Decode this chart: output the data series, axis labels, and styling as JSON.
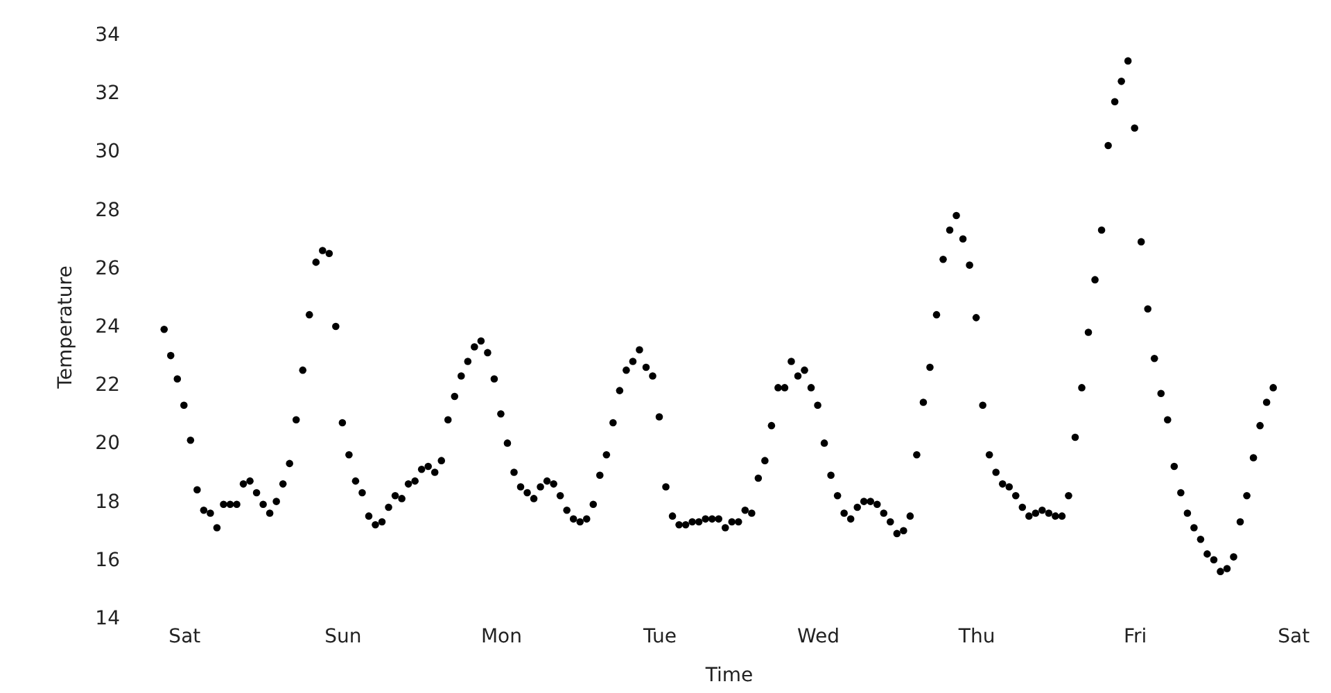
{
  "chart_data": {
    "type": "scatter",
    "xlabel": "Time",
    "ylabel": "Temperature",
    "categories": [
      null,
      null,
      null,
      "Sat",
      null,
      null,
      null,
      null,
      null,
      null,
      null,
      null,
      null,
      null,
      null,
      null,
      null,
      null,
      null,
      null,
      null,
      null,
      null,
      null,
      null,
      null,
      null,
      "Sun",
      null,
      null,
      null,
      null,
      null,
      null,
      null,
      null,
      null,
      null,
      null,
      null,
      null,
      null,
      null,
      null,
      null,
      null,
      null,
      null,
      null,
      null,
      null,
      "Mon",
      null,
      null,
      null,
      null,
      null,
      null,
      null,
      null,
      null,
      null,
      null,
      null,
      null,
      null,
      null,
      null,
      null,
      null,
      null,
      null,
      null,
      null,
      null,
      "Tue",
      null,
      null,
      null,
      null,
      null,
      null,
      null,
      null,
      null,
      null,
      null,
      null,
      null,
      null,
      null,
      null,
      null,
      null,
      null,
      null,
      null,
      null,
      null,
      "Wed",
      null,
      null,
      null,
      null,
      null,
      null,
      null,
      null,
      null,
      null,
      null,
      null,
      null,
      null,
      null,
      null,
      null,
      null,
      null,
      null,
      null,
      null,
      null,
      "Thu",
      null,
      null,
      null,
      null,
      null,
      null,
      null,
      null,
      null,
      null,
      null,
      null,
      null,
      null,
      null,
      null,
      null,
      null,
      null,
      null,
      null,
      null,
      null,
      "Fri",
      null,
      null,
      null,
      null,
      null,
      null,
      null,
      null,
      null,
      null,
      null,
      null,
      null,
      null,
      null,
      null,
      null,
      null,
      null,
      null,
      null,
      null,
      null,
      "Sat"
    ],
    "series": [
      {
        "color": "#000000",
        "values": [
          23.9,
          23.0,
          22.2,
          21.3,
          20.1,
          18.4,
          17.7,
          17.6,
          17.1,
          17.9,
          17.9,
          17.9,
          18.6,
          18.7,
          18.3,
          17.9,
          17.6,
          18.0,
          18.6,
          19.3,
          20.8,
          22.5,
          24.4,
          26.2,
          26.6,
          26.5,
          24.0,
          20.7,
          19.6,
          18.7,
          18.3,
          17.5,
          17.2,
          17.3,
          17.8,
          18.2,
          18.1,
          18.6,
          18.7,
          19.1,
          19.2,
          19.0,
          19.4,
          20.8,
          21.6,
          22.3,
          22.8,
          23.3,
          23.5,
          23.1,
          22.2,
          21.0,
          20.0,
          19.0,
          18.5,
          18.3,
          18.1,
          18.5,
          18.7,
          18.6,
          18.2,
          17.7,
          17.4,
          17.3,
          17.4,
          17.9,
          18.9,
          19.6,
          20.7,
          21.8,
          22.5,
          22.8,
          23.2,
          22.6,
          22.3,
          20.9,
          18.5,
          17.5,
          17.2,
          17.2,
          17.3,
          17.3,
          17.4,
          17.4,
          17.4,
          17.1,
          17.3,
          17.3,
          17.7,
          17.6,
          18.8,
          19.4,
          20.6,
          21.9,
          21.9,
          22.8,
          22.3,
          22.5,
          21.9,
          21.3,
          20.0,
          18.9,
          18.2,
          17.6,
          17.4,
          17.8,
          18.0,
          18.0,
          17.9,
          17.6,
          17.3,
          16.9,
          17.0,
          17.5,
          19.6,
          21.4,
          22.6,
          24.4,
          26.3,
          27.3,
          27.8,
          27.0,
          26.1,
          24.3,
          21.3,
          19.6,
          19.0,
          18.6,
          18.5,
          18.2,
          17.8,
          17.5,
          17.6,
          17.7,
          17.6,
          17.5,
          17.5,
          18.2,
          20.2,
          21.9,
          23.8,
          25.6,
          27.3,
          30.2,
          31.7,
          32.4,
          33.1,
          30.8,
          26.9,
          24.6,
          22.9,
          21.7,
          20.8,
          19.2,
          18.3,
          17.6,
          17.1,
          16.7,
          16.2,
          16.0,
          15.6,
          15.7,
          16.1,
          17.3,
          18.2,
          19.5,
          20.6,
          21.4,
          21.9,
          null,
          null,
          null
        ]
      }
    ],
    "ylim": [
      14,
      34
    ],
    "yticks": [
      14,
      16,
      18,
      20,
      22,
      24,
      26,
      28,
      30,
      32,
      34
    ],
    "grid": false
  }
}
